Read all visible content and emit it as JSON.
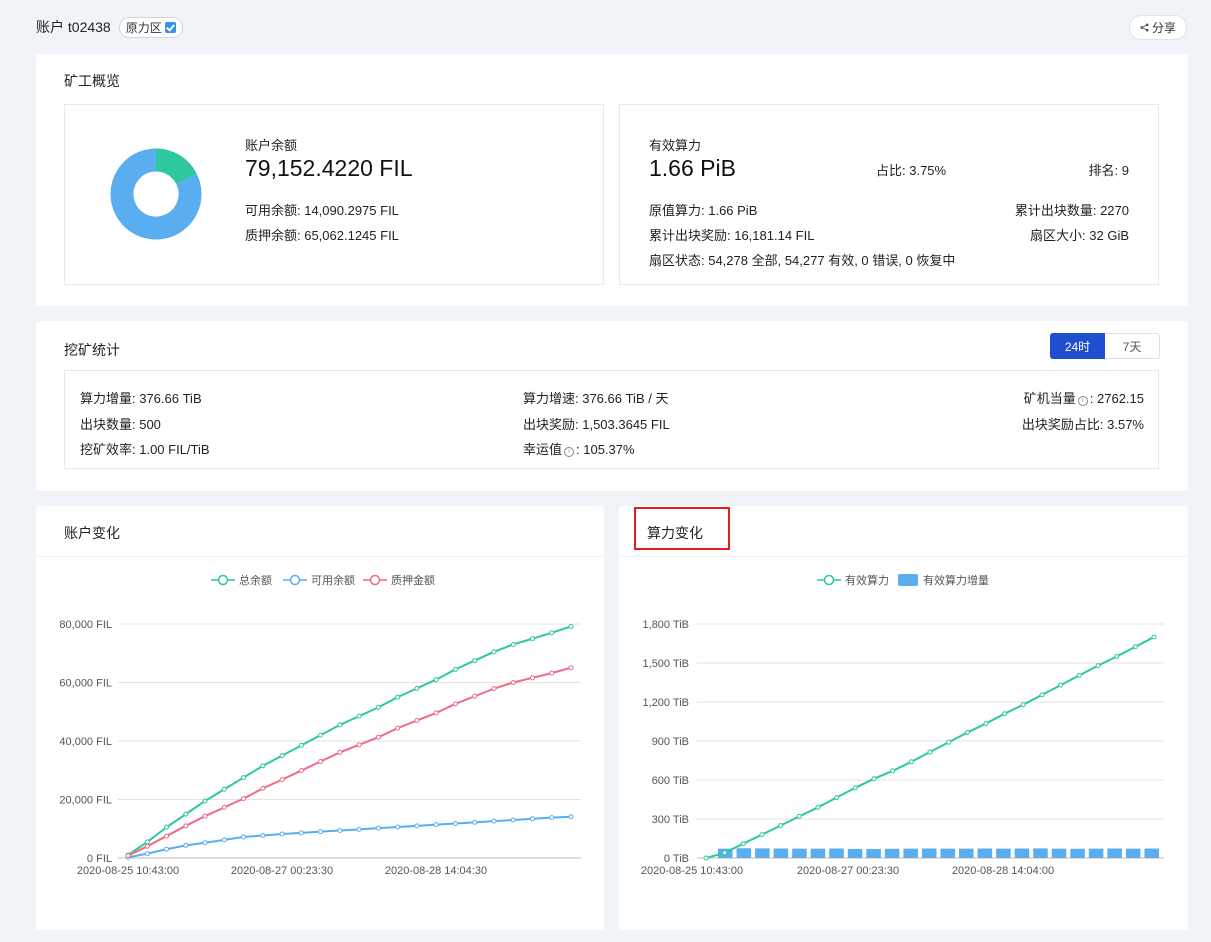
{
  "header": {
    "account_title": "账户 t02438",
    "badge_label": "原力区",
    "share_label": "分享"
  },
  "overview": {
    "title": "矿工概览",
    "balance_label": "账户余额",
    "balance_value": "79,152.4220 FIL",
    "available": "可用余额: 14,090.2975 FIL",
    "pledged": "质押余额: 65,062.1245 FIL",
    "donut": {
      "available": 14090.2975,
      "pledged": 65062.1245,
      "available_color": "#2ec7a0",
      "pledged_color": "#5aaef0"
    },
    "power_label": "有效算力",
    "power_value": "1.66 PiB",
    "share_ratio": "占比: 3.75%",
    "rank": "排名: 9",
    "raw_power": "原值算力: 1.66 PiB",
    "blocks_total": "累计出块数量: 2270",
    "rewards_total": "累计出块奖励: 16,181.14 FIL",
    "sector_size": "扇区大小: 32 GiB",
    "sector_status": "扇区状态: 54,278 全部, 54,277 有效, 0 错误, 0 恢复中"
  },
  "mining": {
    "title": "挖矿统计",
    "tab_24h": "24时",
    "tab_7d": "7天",
    "power_increase": "算力增量: 376.66 TiB",
    "power_speed": "算力增速: 376.66 TiB / 天",
    "miner_equiv_label": "矿机当量",
    "miner_equiv_value": ": 2762.15",
    "blocks": "出块数量: 500",
    "block_reward": "出块奖励: 1,503.3645 FIL",
    "reward_ratio": "出块奖励占比: 3.57%",
    "efficiency": "挖矿效率: 1.00 FIL/TiB",
    "luck_label": "幸运值",
    "luck_value": ": 105.37%"
  },
  "account_chart": {
    "title": "账户变化",
    "chart_data": {
      "type": "line",
      "x_ticks": [
        "2020-08-25 10:43:00",
        "2020-08-27 00:23:30",
        "2020-08-28 14:04:30"
      ],
      "y_ticks": [
        "0 FIL",
        "20,000 FIL",
        "40,000 FIL",
        "60,000 FIL",
        "80,000 FIL"
      ],
      "ylim": [
        0,
        80000
      ],
      "series": [
        {
          "name": "总余额",
          "color": "#2ec7a0",
          "values": [
            1000,
            5500,
            10500,
            15000,
            19500,
            23500,
            27500,
            31500,
            35000,
            38500,
            42000,
            45500,
            48500,
            51500,
            55000,
            58000,
            61000,
            64500,
            67500,
            70500,
            73000,
            75000,
            77000,
            79152
          ]
        },
        {
          "name": "可用余额",
          "color": "#5aaef0",
          "values": [
            200,
            1500,
            3000,
            4300,
            5200,
            6200,
            7200,
            7700,
            8200,
            8600,
            9000,
            9400,
            9800,
            10200,
            10600,
            11000,
            11400,
            11800,
            12200,
            12600,
            13000,
            13400,
            13800,
            14090
          ]
        },
        {
          "name": "质押金额",
          "color": "#f06a85",
          "values": [
            800,
            4000,
            7500,
            11000,
            14300,
            17300,
            20300,
            23800,
            26800,
            29900,
            33000,
            36100,
            38700,
            41300,
            44400,
            47000,
            49600,
            52700,
            55300,
            57900,
            60000,
            61600,
            63200,
            65062
          ]
        }
      ]
    }
  },
  "power_chart": {
    "title": "算力变化",
    "chart_data": {
      "type": "bar",
      "x_ticks": [
        "2020-08-25 10:43:00",
        "2020-08-27 00:23:30",
        "2020-08-28 14:04:00"
      ],
      "y_ticks": [
        "0 TiB",
        "300 TiB",
        "600 TiB",
        "900 TiB",
        "1,200 TiB",
        "1,500 TiB",
        "1,800 TiB"
      ],
      "ylim": [
        0,
        1800
      ],
      "series": [
        {
          "name": "有效算力",
          "type": "line",
          "color": "#2ec7a0",
          "values": [
            0,
            40,
            110,
            180,
            250,
            320,
            390,
            465,
            540,
            610,
            670,
            740,
            815,
            890,
            965,
            1035,
            1110,
            1180,
            1255,
            1330,
            1405,
            1480,
            1550,
            1625,
            1700
          ]
        },
        {
          "name": "有效算力增量",
          "type": "bar",
          "color": "#5aaef0",
          "values": [
            72,
            75,
            74,
            73,
            72,
            72,
            73,
            70,
            69,
            71,
            72,
            73,
            72,
            72,
            73,
            72,
            73,
            74,
            72,
            71,
            72,
            73,
            72,
            73
          ]
        }
      ]
    }
  }
}
